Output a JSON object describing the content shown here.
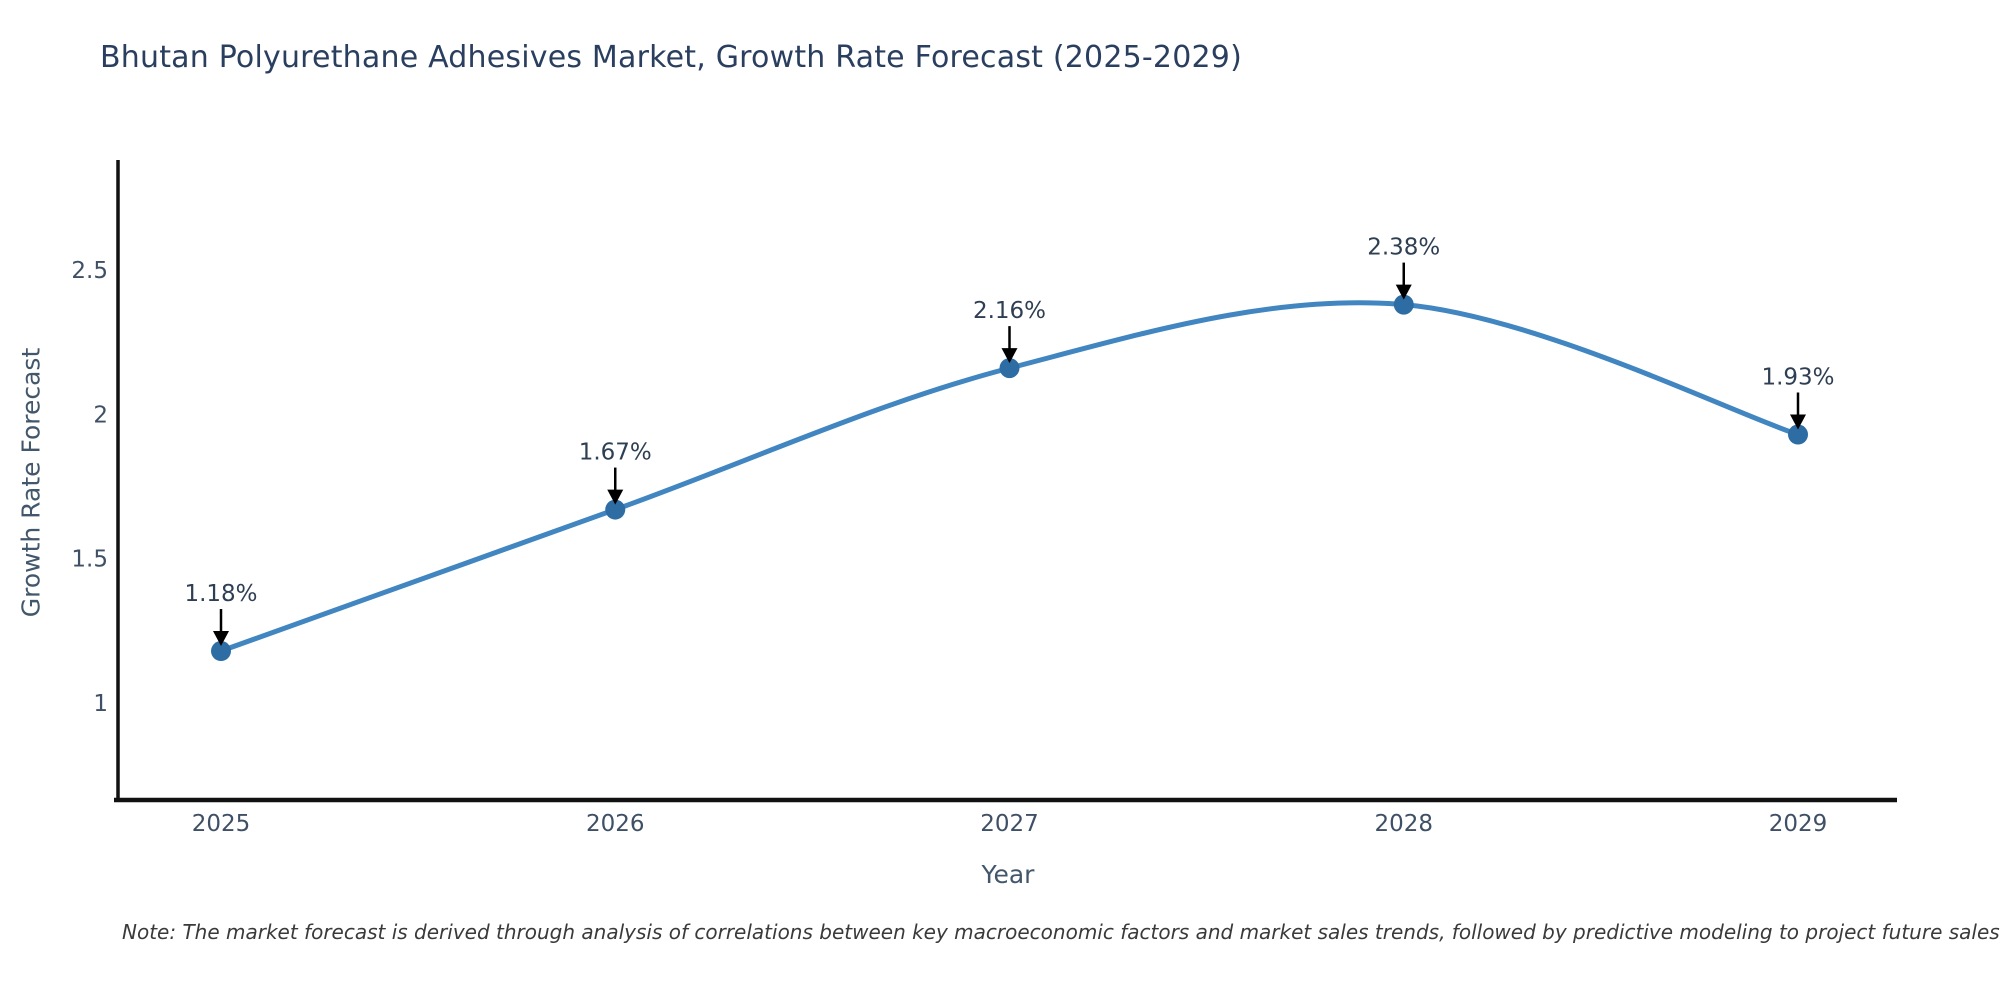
{
  "chart_data": {
    "type": "line",
    "title": "Bhutan Polyurethane Adhesives Market, Growth Rate Forecast (2025-2029)",
    "xlabel": "Year",
    "ylabel": "Growth Rate Forecast",
    "x": [
      2025,
      2026,
      2027,
      2028,
      2029
    ],
    "series": [
      {
        "name": "Growth Rate Forecast",
        "values": [
          1.18,
          1.67,
          2.16,
          2.38,
          1.93
        ],
        "point_labels": [
          "1.18%",
          "1.67%",
          "2.16%",
          "2.38%",
          "1.93%"
        ]
      }
    ],
    "x_tick_labels": [
      "2025",
      "2026",
      "2027",
      "2028",
      "2029"
    ],
    "y_tick_labels": [
      "1",
      "1.5",
      "2",
      "2.5"
    ],
    "y_tick_values": [
      1,
      1.5,
      2,
      2.5
    ],
    "ylim": [
      0.66,
      2.89
    ],
    "xlim": [
      2024.74,
      2029.25
    ],
    "grid": false,
    "legend": "none",
    "line_shape": "spline",
    "annotation_arrows": "down",
    "note": "Note: The market forecast is derived through analysis of correlations between key macroeconomic factors and market sales trends, followed by predictive modeling to project future sales",
    "colors": {
      "line": "#4186c0",
      "marker": "#2e6da4",
      "axis": "#111111",
      "title": "#2a3f5f",
      "tick": "#3f5066",
      "annotation": "#2f3f53",
      "arrow": "#000000",
      "note": "#3a3a3a",
      "background": "#ffffff"
    }
  }
}
